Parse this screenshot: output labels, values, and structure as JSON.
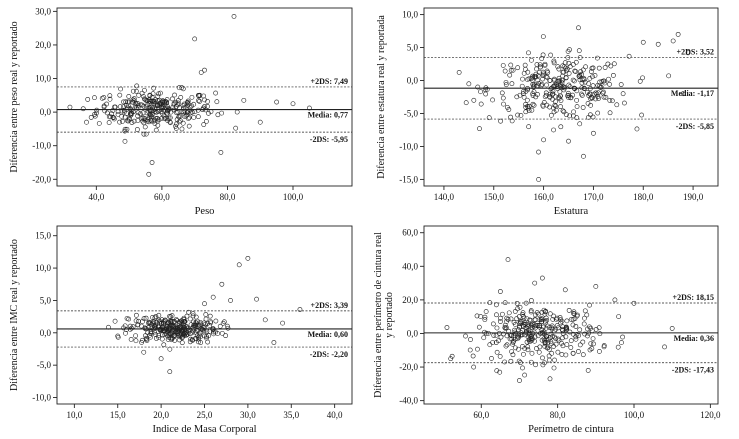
{
  "chart_data": [
    {
      "type": "scatter",
      "title": "",
      "xlabel": "Peso",
      "ylabel": "Diferencia entre peso real y reportado",
      "xlim": [
        28,
        118
      ],
      "ylim": [
        -22,
        31
      ],
      "xticks": [
        40,
        60,
        80,
        100
      ],
      "xtick_labels": [
        "40,0",
        "60,0",
        "80,0",
        "100,0"
      ],
      "yticks": [
        -20,
        -10,
        0,
        10,
        20,
        30
      ],
      "ytick_labels": [
        "-20,0",
        "-10,0",
        "0,0",
        "10,0",
        "20,0",
        "30,0"
      ],
      "grid": false,
      "lines": [
        {
          "label": "+2DS: 7,49",
          "y": 7.49,
          "style": "dashed"
        },
        {
          "label": "Media: 0,77",
          "y": 0.77,
          "style": "solid"
        },
        {
          "label": "-2DS: -5,95",
          "y": -5.95,
          "style": "dashed"
        }
      ],
      "cluster": {
        "x_center": 58,
        "x_spread": 9,
        "y_center": 0.8,
        "y_spread": 2.8,
        "n": 300
      },
      "points": [
        [
          82,
          28.5
        ],
        [
          70,
          21.8
        ],
        [
          73,
          12.5
        ],
        [
          72,
          11.8
        ],
        [
          56,
          -18.5
        ],
        [
          57,
          -15
        ],
        [
          78,
          -12
        ],
        [
          105,
          1.2
        ],
        [
          100,
          2.5
        ],
        [
          95,
          3
        ],
        [
          85,
          3.5
        ],
        [
          90,
          -3
        ],
        [
          37,
          -3
        ],
        [
          36,
          1
        ]
      ]
    },
    {
      "type": "scatter",
      "title": "",
      "xlabel": "Estatura",
      "ylabel": "Diferencia entre estatura real y reportada",
      "xlim": [
        136,
        195
      ],
      "ylim": [
        -16,
        11
      ],
      "xticks": [
        140,
        150,
        160,
        170,
        180,
        190
      ],
      "xtick_labels": [
        "140,0",
        "150,0",
        "160,0",
        "170,0",
        "180,0",
        "190,0"
      ],
      "yticks": [
        -15,
        -10,
        -5,
        0,
        5,
        10
      ],
      "ytick_labels": [
        "-15,0",
        "-10,0",
        "-5,0",
        "0,0",
        "5,0",
        "10,0"
      ],
      "grid": false,
      "lines": [
        {
          "label": "+2DS: 3,52",
          "y": 3.52,
          "style": "dashed"
        },
        {
          "label": "Media: -1,17",
          "y": -1.17,
          "style": "solid"
        },
        {
          "label": "-2DS: -5,85",
          "y": -5.85,
          "style": "dashed"
        }
      ],
      "cluster": {
        "x_center": 163,
        "x_spread": 7,
        "y_center": -1.2,
        "y_spread": 2.4,
        "n": 300
      },
      "points": [
        [
          159,
          -15
        ],
        [
          168,
          -11.5
        ],
        [
          160,
          -9
        ],
        [
          165,
          -9.2
        ],
        [
          170,
          -8
        ],
        [
          162,
          -7.5
        ],
        [
          157,
          -7
        ],
        [
          187,
          7
        ],
        [
          167,
          8
        ],
        [
          186,
          6
        ],
        [
          183,
          5.5
        ],
        [
          189,
          4.2
        ],
        [
          180,
          5.8
        ],
        [
          145,
          -0.5
        ],
        [
          146,
          -3
        ],
        [
          188,
          -2
        ]
      ]
    },
    {
      "type": "scatter",
      "title": "",
      "xlabel": "Indice de Masa Corporal",
      "ylabel": "Diferencia entre IMC real y reportado",
      "xlim": [
        8,
        42
      ],
      "ylim": [
        -11,
        16.5
      ],
      "xticks": [
        10,
        15,
        20,
        25,
        30,
        35,
        40
      ],
      "xtick_labels": [
        "10,0",
        "15,0",
        "20,0",
        "25,0",
        "30,0",
        "35,0",
        "40,0"
      ],
      "yticks": [
        -10,
        -5,
        0,
        5,
        10,
        15
      ],
      "ytick_labels": [
        "-10,0",
        "-5,0",
        "0,0",
        "5,0",
        "10,0",
        "15,0"
      ],
      "grid": false,
      "lines": [
        {
          "label": "+2DS: 3,39",
          "y": 3.39,
          "style": "dashed"
        },
        {
          "label": "Media: 0,60",
          "y": 0.6,
          "style": "solid"
        },
        {
          "label": "-2DS: -2,20",
          "y": -2.2,
          "style": "dashed"
        }
      ],
      "cluster": {
        "x_center": 21.5,
        "x_spread": 2.6,
        "y_center": 0.6,
        "y_spread": 1.1,
        "n": 300
      },
      "points": [
        [
          30,
          11.5
        ],
        [
          29,
          10.5
        ],
        [
          27,
          7.5
        ],
        [
          26,
          5.5
        ],
        [
          28,
          5
        ],
        [
          21,
          -6
        ],
        [
          20,
          -4
        ],
        [
          18,
          -3
        ],
        [
          25,
          4.5
        ],
        [
          32,
          2
        ],
        [
          34,
          1.5
        ],
        [
          36,
          3.6
        ],
        [
          33,
          -1.5
        ],
        [
          15,
          -0.5
        ],
        [
          16,
          0.5
        ],
        [
          31,
          5.2
        ]
      ]
    },
    {
      "type": "scatter",
      "title": "",
      "xlabel": "Perímetro de cintura",
      "ylabel": "Diferencia entre perímetro de cintura real y reportado",
      "xlim": [
        45,
        122
      ],
      "ylim": [
        -42,
        64
      ],
      "xticks": [
        60,
        80,
        100,
        120
      ],
      "xtick_labels": [
        "60,0",
        "80,0",
        "100,0",
        "120,0"
      ],
      "yticks": [
        -40,
        -20,
        0,
        20,
        40,
        60
      ],
      "ytick_labels": [
        "-40,0",
        "-20,0",
        "0,0",
        "20,0",
        "40,0",
        "60,0"
      ],
      "grid": false,
      "lines": [
        {
          "label": "+2DS: 18,15",
          "y": 18.15,
          "style": "dashed"
        },
        {
          "label": "Media: 0,36",
          "y": 0.36,
          "style": "solid"
        },
        {
          "label": "-2DS: -17,43",
          "y": -17.43,
          "style": "dashed"
        }
      ],
      "cluster": {
        "x_center": 75,
        "x_spread": 8,
        "y_center": 0.4,
        "y_spread": 8,
        "n": 320
      },
      "points": [
        [
          67,
          44
        ],
        [
          76,
          33
        ],
        [
          74,
          30
        ],
        [
          90,
          28
        ],
        [
          65,
          25
        ],
        [
          70,
          -28
        ],
        [
          78,
          -27
        ],
        [
          88,
          -22
        ],
        [
          100,
          18
        ],
        [
          110,
          3
        ],
        [
          108,
          -8
        ],
        [
          52,
          -15
        ],
        [
          58,
          -20
        ],
        [
          95,
          20
        ],
        [
          82,
          26
        ]
      ]
    }
  ]
}
